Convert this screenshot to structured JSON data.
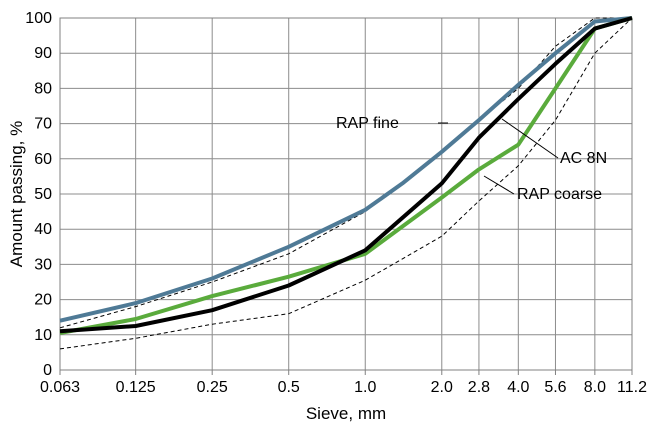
{
  "chart_data": {
    "type": "line",
    "xscale": "log",
    "title": "",
    "xlabel": "Sieve, mm",
    "ylabel": "Amount passing, %",
    "ylim": [
      0,
      100
    ],
    "yticks": [
      0,
      10,
      20,
      30,
      40,
      50,
      60,
      70,
      80,
      90,
      100
    ],
    "xticks": [
      0.063,
      0.125,
      0.25,
      0.5,
      1.0,
      2.0,
      2.8,
      4.0,
      5.6,
      8.0,
      11.2
    ],
    "xtick_labels": [
      "0.063",
      "0.125",
      "0.25",
      "0.5",
      "1.0",
      "2.0",
      "2.8",
      "4.0",
      "5.6",
      "8.0",
      "11.2"
    ],
    "grid": true,
    "legend": "none (series labelled by callouts)",
    "series": [
      {
        "name": "RAP fine",
        "color": "#4f7a96",
        "style": "solid",
        "x": [
          0.063,
          0.125,
          0.25,
          0.5,
          1.0,
          1.4,
          2.0,
          2.8,
          4.0,
          5.6,
          8.0,
          11.2
        ],
        "y": [
          14,
          19,
          26,
          35,
          45.5,
          53,
          62,
          71,
          81,
          90,
          99,
          100
        ]
      },
      {
        "name": "AC 8N",
        "color": "#000000",
        "style": "solid",
        "x": [
          0.063,
          0.125,
          0.25,
          0.5,
          1.0,
          2.0,
          2.8,
          4.0,
          5.6,
          8.0,
          11.2
        ],
        "y": [
          11,
          12.5,
          17,
          24,
          34,
          53,
          66,
          77,
          87,
          97,
          100
        ]
      },
      {
        "name": "RAP coarse",
        "color": "#5aab3c",
        "style": "solid",
        "x": [
          0.063,
          0.125,
          0.25,
          0.5,
          1.0,
          2.0,
          2.8,
          4.0,
          5.6,
          8.0,
          11.2
        ],
        "y": [
          10.5,
          14.5,
          21,
          26.5,
          33,
          49,
          57,
          64,
          80,
          97,
          100
        ]
      },
      {
        "name": "",
        "color": "#000000",
        "style": "dashed",
        "x": [
          0.063,
          0.125,
          0.25,
          0.5,
          1.0,
          2.0,
          2.8,
          4.0,
          5.6,
          8.0,
          11.2
        ],
        "y": [
          6,
          9,
          13,
          16,
          25.5,
          38,
          48,
          58,
          71,
          90,
          100
        ]
      },
      {
        "name": "",
        "color": "#000000",
        "style": "dashed",
        "x": [
          0.063,
          0.125,
          0.25,
          0.5,
          1.0,
          2.0,
          2.8,
          4.0,
          5.6,
          8.0,
          11.2
        ],
        "y": [
          12,
          18,
          25,
          33,
          45,
          62,
          71,
          80,
          92,
          100,
          100
        ]
      }
    ],
    "annotations": [
      {
        "text": "RAP fine",
        "series": "RAP fine"
      },
      {
        "text": "AC 8N",
        "series": "AC 8N"
      },
      {
        "text": "RAP coarse",
        "series": "RAP coarse"
      }
    ]
  }
}
